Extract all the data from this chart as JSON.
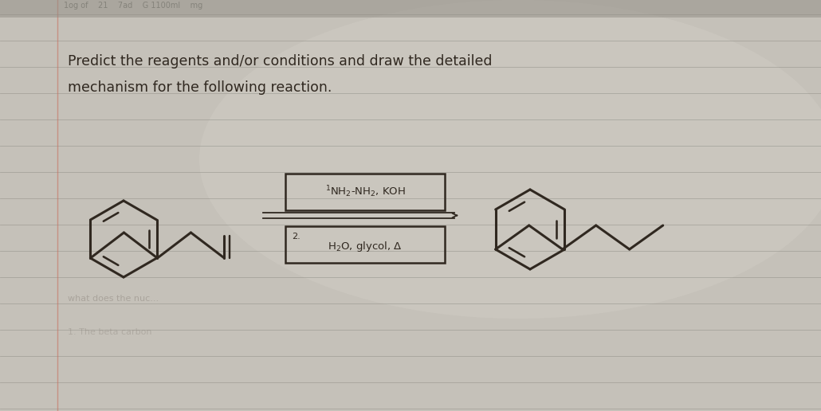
{
  "bg_color": "#b8b4ac",
  "paper_color": "#c8c4bc",
  "line_color": "#302820",
  "grid_color": "#a8a49c",
  "grid_color2": "#9c9890",
  "text_color": "#282018",
  "title1": "Predict the reagents and/or conditions and draw the detailed",
  "title2": "mechanism for the following reaction.",
  "reagent1": "NH₂-NH₂, KOH",
  "reagent2_num": "2.",
  "reagent2": "H₂O, glycol, Δ",
  "margin_color": "#8a7060",
  "shadow_color": "#706860"
}
